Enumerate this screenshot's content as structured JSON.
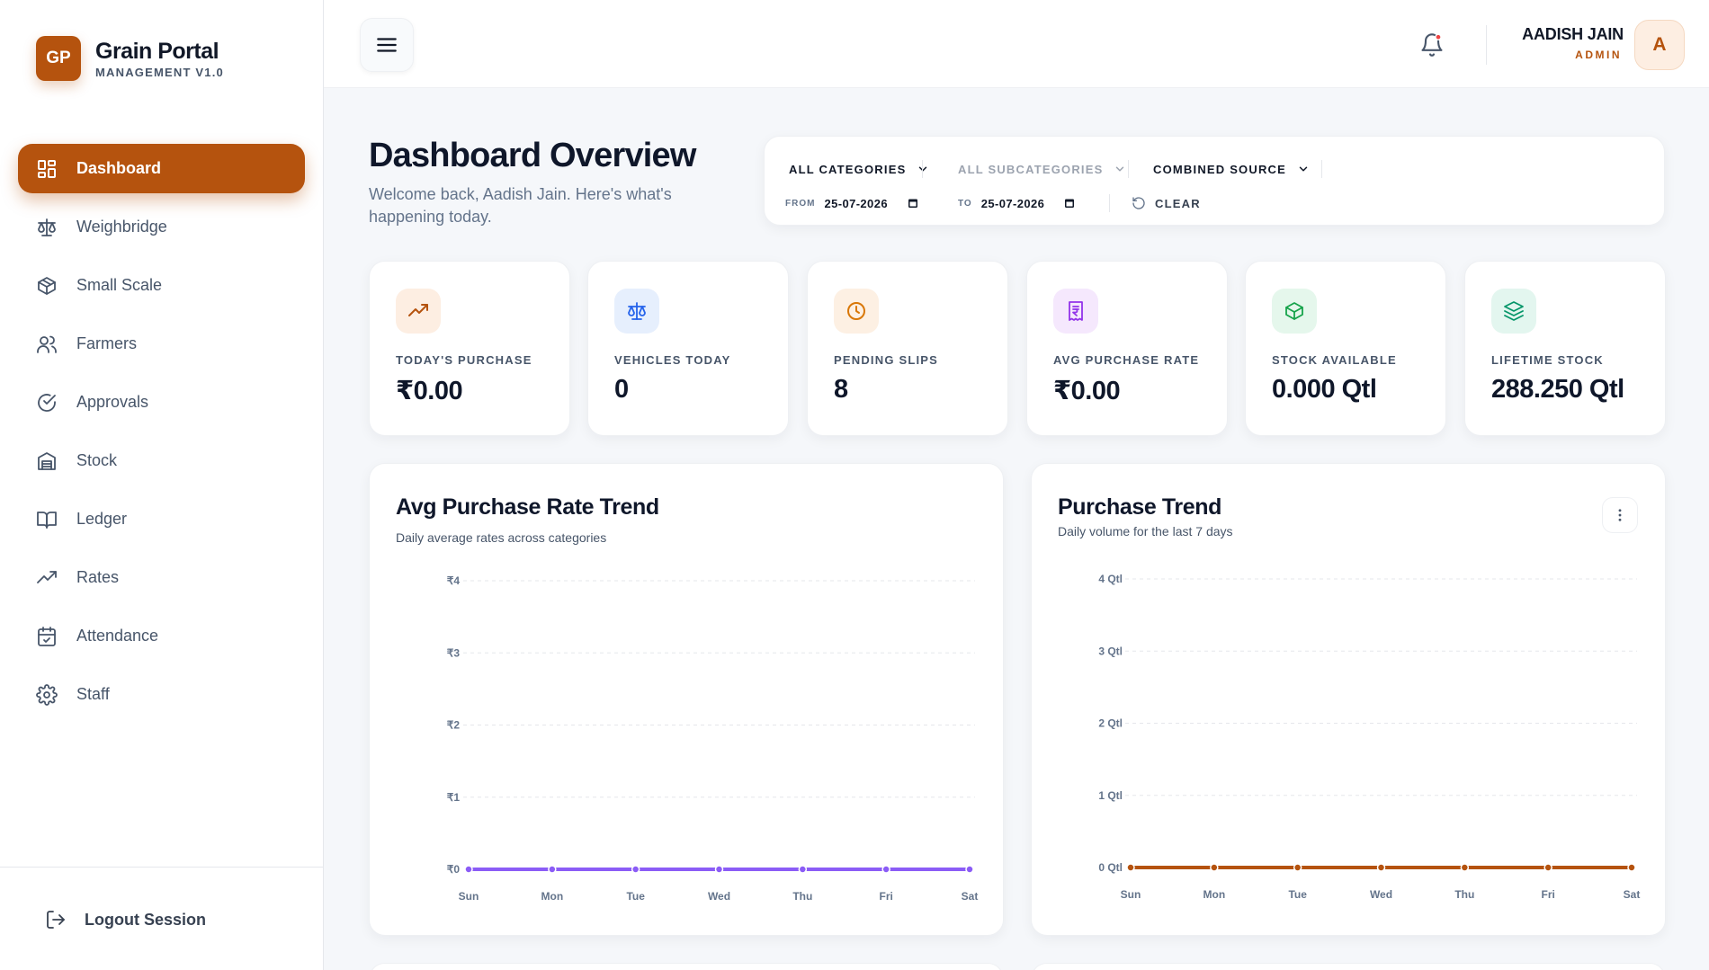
{
  "brand": {
    "logo": "GP",
    "name": "Grain Portal",
    "sub": "MANAGEMENT V1.0"
  },
  "nav": [
    {
      "label": "Dashboard",
      "icon": "dashboard-icon",
      "active": true
    },
    {
      "label": "Weighbridge",
      "icon": "scale-icon"
    },
    {
      "label": "Small Scale",
      "icon": "box-icon"
    },
    {
      "label": "Farmers",
      "icon": "users-icon"
    },
    {
      "label": "Approvals",
      "icon": "check-circle-icon"
    },
    {
      "label": "Stock",
      "icon": "warehouse-icon"
    },
    {
      "label": "Ledger",
      "icon": "book-icon"
    },
    {
      "label": "Rates",
      "icon": "trending-up-icon"
    },
    {
      "label": "Attendance",
      "icon": "calendar-check-icon"
    },
    {
      "label": "Staff",
      "icon": "gear-icon"
    }
  ],
  "logout": {
    "label": "Logout Session",
    "icon": "logout-icon"
  },
  "user": {
    "name": "AADISH JAIN",
    "role": "ADMIN",
    "initial": "A"
  },
  "page": {
    "title": "Dashboard Overview",
    "subtitle": "Welcome back, Aadish Jain. Here's what's happening today."
  },
  "filters": {
    "category": "ALL CATEGORIES",
    "subcategory": "ALL SUBCATEGORIES",
    "source": "COMBINED SOURCE",
    "from_label": "FROM",
    "from_value": "25-07-2026",
    "to_label": "TO",
    "to_value": "25-07-2026",
    "clear_label": "CLEAR"
  },
  "stats": [
    {
      "label": "TODAY'S PURCHASE",
      "value": "₹0.00",
      "icon": "trending-up-icon",
      "bg": "#fdeee2",
      "color": "#b5530e"
    },
    {
      "label": "VEHICLES TODAY",
      "value": "0",
      "icon": "scale-icon",
      "bg": "#e6effd",
      "color": "#2563eb"
    },
    {
      "label": "PENDING SLIPS",
      "value": "8",
      "icon": "clock-icon",
      "bg": "#fdf0e3",
      "color": "#d97706"
    },
    {
      "label": "AVG PURCHASE RATE",
      "value": "₹0.00",
      "icon": "receipt-icon",
      "bg": "#f5e8fd",
      "color": "#9333ea"
    },
    {
      "label": "STOCK AVAILABLE",
      "value": "0.000 Qtl",
      "icon": "package-icon",
      "bg": "#e5f7ec",
      "color": "#16a34a"
    },
    {
      "label": "LIFETIME STOCK",
      "value": "288.250 Qtl",
      "icon": "layers-icon",
      "bg": "#e3f6ef",
      "color": "#059669"
    }
  ],
  "charts": {
    "rate": {
      "title": "Avg Purchase Rate Trend",
      "subtitle": "Daily average rates across categories"
    },
    "purchase": {
      "title": "Purchase Trend",
      "subtitle": "Daily volume for the last 7 days"
    }
  },
  "chart_data": [
    {
      "type": "line",
      "title": "Avg Purchase Rate Trend",
      "subtitle": "Daily average rates across categories",
      "categories": [
        "Sun",
        "Mon",
        "Tue",
        "Wed",
        "Thu",
        "Fri",
        "Sat"
      ],
      "yticks": [
        "₹0",
        "₹1",
        "₹2",
        "₹3",
        "₹4"
      ],
      "ylim": [
        0,
        4
      ],
      "series": [
        {
          "values": [
            0,
            0,
            0,
            0,
            0,
            0,
            0
          ],
          "color": "#8b5cf6"
        }
      ]
    },
    {
      "type": "line",
      "title": "Purchase Trend",
      "subtitle": "Daily volume for the last 7 days",
      "categories": [
        "Sun",
        "Mon",
        "Tue",
        "Wed",
        "Thu",
        "Fri",
        "Sat"
      ],
      "yticks": [
        "0 Qtl",
        "1 Qtl",
        "2 Qtl",
        "3 Qtl",
        "4 Qtl"
      ],
      "ylim": [
        0,
        4
      ],
      "series": [
        {
          "values": [
            0,
            0,
            0,
            0,
            0,
            0,
            0
          ],
          "color": "#b5530e"
        }
      ]
    }
  ]
}
